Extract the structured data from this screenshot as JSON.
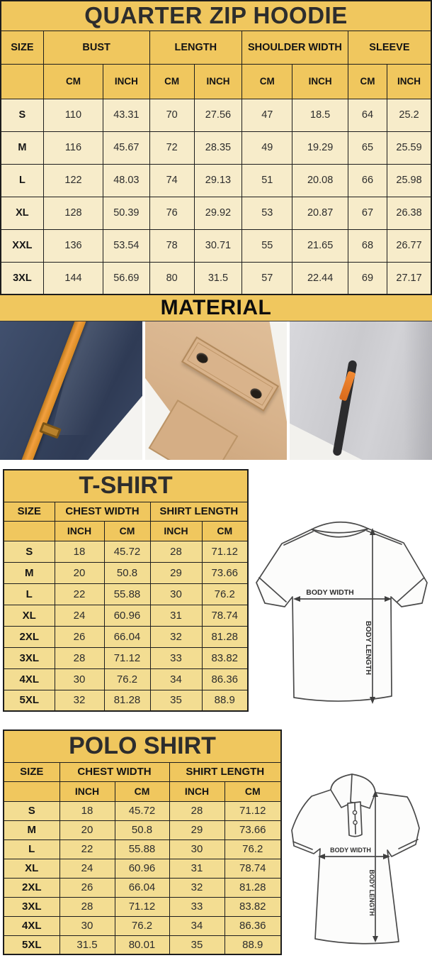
{
  "colors": {
    "gold": "#f0c75e",
    "cream": "#f7ecca",
    "pale_yellow": "#f3dd92",
    "border": "#1d1d1d",
    "navy_fabric": "#36445f",
    "khaki_fabric": "#d7b28b",
    "gray_fabric": "#cacace",
    "accent_orange": "#f2a040"
  },
  "hoodie_table": {
    "title": "QUARTER ZIP HOODIE",
    "size_header": "SIZE",
    "groups": [
      "BUST",
      "LENGTH",
      "SHOULDER WIDTH",
      "SLEEVE"
    ],
    "units": [
      "CM",
      "INCH",
      "CM",
      "INCH",
      "CM",
      "INCH",
      "CM",
      "INCH"
    ],
    "rows": [
      [
        "S",
        "110",
        "43.31",
        "70",
        "27.56",
        "47",
        "18.5",
        "64",
        "25.2"
      ],
      [
        "M",
        "116",
        "45.67",
        "72",
        "28.35",
        "49",
        "19.29",
        "65",
        "25.59"
      ],
      [
        "L",
        "122",
        "48.03",
        "74",
        "29.13",
        "51",
        "20.08",
        "66",
        "25.98"
      ],
      [
        "XL",
        "128",
        "50.39",
        "76",
        "29.92",
        "53",
        "20.87",
        "67",
        "26.38"
      ],
      [
        "XXL",
        "136",
        "53.54",
        "78",
        "30.71",
        "55",
        "21.65",
        "68",
        "26.77"
      ],
      [
        "3XL",
        "144",
        "56.69",
        "80",
        "31.5",
        "57",
        "22.44",
        "69",
        "27.17"
      ]
    ]
  },
  "material": {
    "title": "MATERIAL",
    "photos": [
      "navy-fleece-orange-drawstring",
      "khaki-snap-flap-pocket",
      "gray-fleece-zip-pocket"
    ]
  },
  "tshirt_table": {
    "title": "T-SHIRT",
    "size_header": "SIZE",
    "groups": [
      "CHEST WIDTH",
      "SHIRT LENGTH"
    ],
    "units": [
      "INCH",
      "CM",
      "INCH",
      "CM"
    ],
    "rows": [
      [
        "S",
        "18",
        "45.72",
        "28",
        "71.12"
      ],
      [
        "M",
        "20",
        "50.8",
        "29",
        "73.66"
      ],
      [
        "L",
        "22",
        "55.88",
        "30",
        "76.2"
      ],
      [
        "XL",
        "24",
        "60.96",
        "31",
        "78.74"
      ],
      [
        "2XL",
        "26",
        "66.04",
        "32",
        "81.28"
      ],
      [
        "3XL",
        "28",
        "71.12",
        "33",
        "83.82"
      ],
      [
        "4XL",
        "30",
        "76.2",
        "34",
        "86.36"
      ],
      [
        "5XL",
        "32",
        "81.28",
        "35",
        "88.9"
      ]
    ]
  },
  "polo_table": {
    "title": "POLO SHIRT",
    "size_header": "SIZE",
    "groups": [
      "CHEST WIDTH",
      "SHIRT LENGTH"
    ],
    "units": [
      "INCH",
      "CM",
      "INCH",
      "CM"
    ],
    "rows": [
      [
        "S",
        "18",
        "45.72",
        "28",
        "71.12"
      ],
      [
        "M",
        "20",
        "50.8",
        "29",
        "73.66"
      ],
      [
        "L",
        "22",
        "55.88",
        "30",
        "76.2"
      ],
      [
        "XL",
        "24",
        "60.96",
        "31",
        "78.74"
      ],
      [
        "2XL",
        "26",
        "66.04",
        "32",
        "81.28"
      ],
      [
        "3XL",
        "28",
        "71.12",
        "33",
        "83.82"
      ],
      [
        "4XL",
        "30",
        "76.2",
        "34",
        "86.36"
      ],
      [
        "5XL",
        "31.5",
        "80.01",
        "35",
        "88.9"
      ]
    ]
  },
  "tshirt_diagram": {
    "width_label": "BODY WIDTH",
    "length_label": "BODY LENGTH"
  },
  "polo_diagram": {
    "width_label": "BODY WIDTH",
    "length_label": "BODY LENGTH"
  }
}
